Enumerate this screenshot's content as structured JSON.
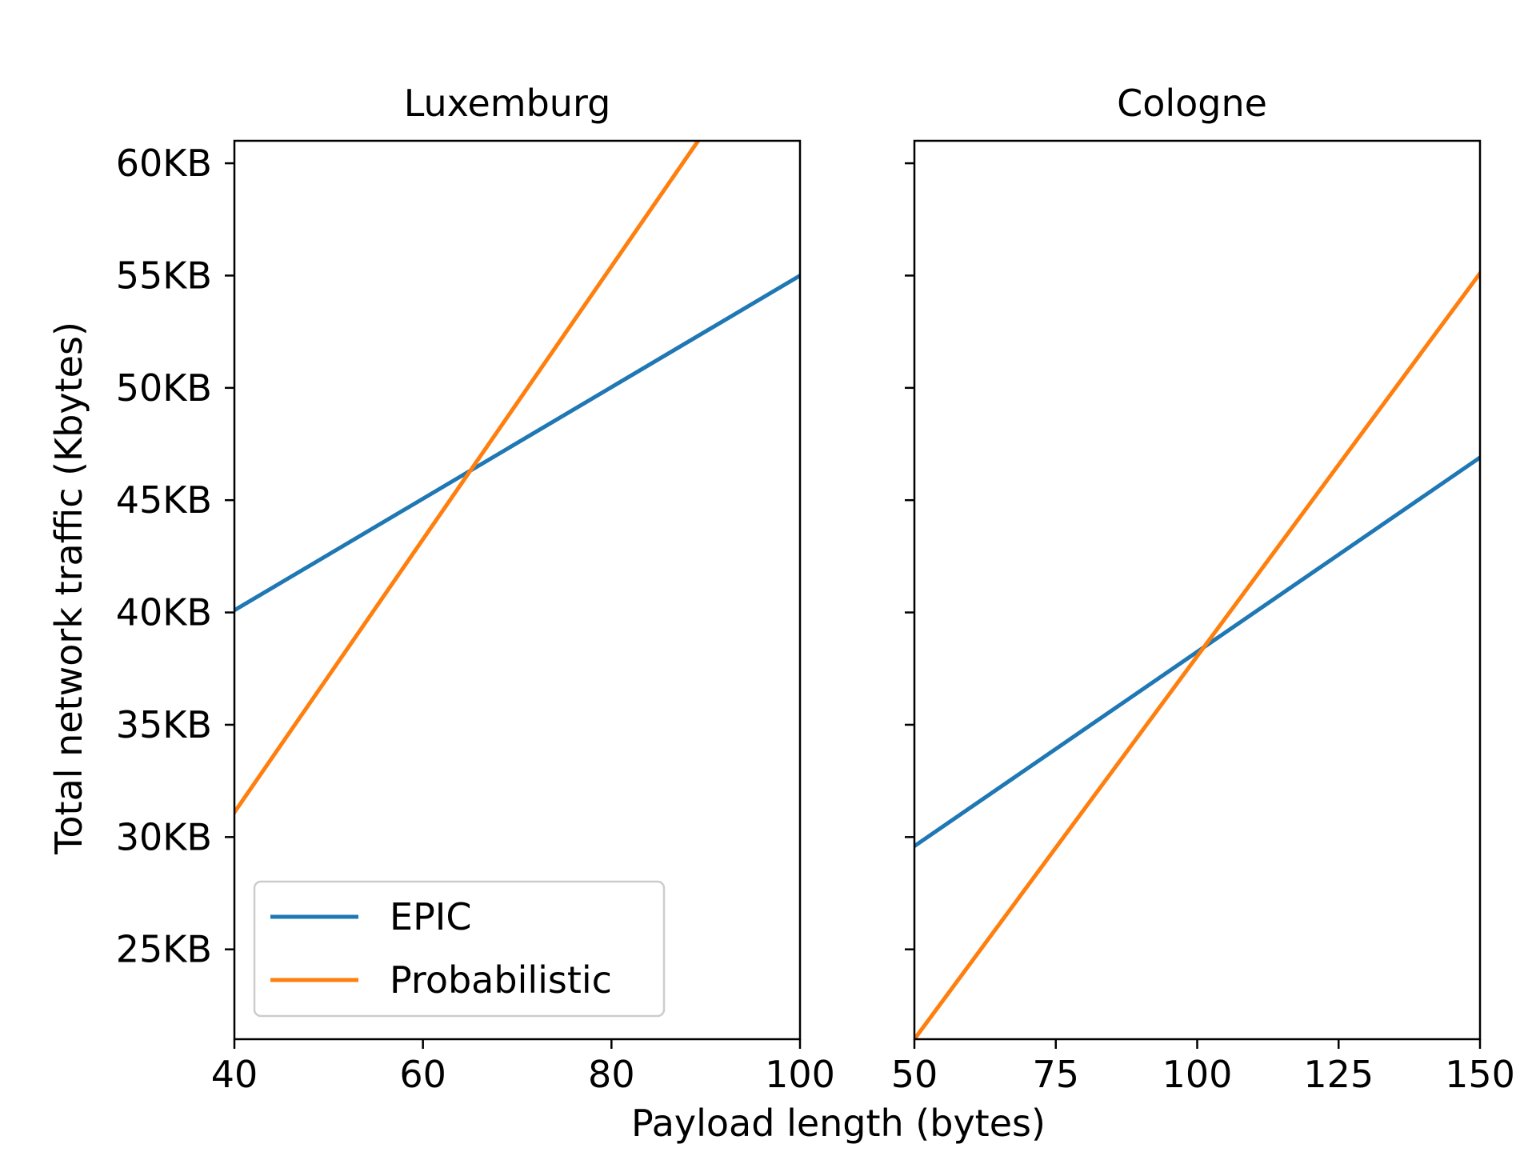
{
  "figure": {
    "ylabel": "Total network traffic (Kbytes)",
    "xlabel": "Payload length (bytes)"
  },
  "chart_data": [
    {
      "type": "line",
      "title": "Luxemburg",
      "xlabel": "Payload length (bytes)",
      "ylabel": "Total network traffic (Kbytes)",
      "xlim": [
        40,
        100
      ],
      "ylim": [
        21,
        61
      ],
      "xticks": [
        40,
        60,
        80,
        100
      ],
      "xtick_labels": [
        "40",
        "60",
        "80",
        "100"
      ],
      "yticks": [
        25,
        30,
        35,
        40,
        45,
        50,
        55,
        60
      ],
      "ytick_labels": [
        "25KB",
        "30KB",
        "35KB",
        "40KB",
        "45KB",
        "50KB",
        "55KB",
        "60KB"
      ],
      "legend": {
        "position": "lower-left",
        "entries": [
          "EPIC",
          "Probabilistic"
        ]
      },
      "grid": false,
      "series": [
        {
          "name": "EPIC",
          "color": "#1f77b4",
          "x": [
            40,
            100
          ],
          "y": [
            40.1,
            55.0
          ]
        },
        {
          "name": "Probabilistic",
          "color": "#ff7f0e",
          "x": [
            40,
            89.2
          ],
          "y": [
            31.1,
            61.0
          ]
        }
      ]
    },
    {
      "type": "line",
      "title": "Cologne",
      "xlabel": "Payload length (bytes)",
      "ylabel": "Total network traffic (Kbytes)",
      "xlim": [
        50,
        150
      ],
      "ylim": [
        21,
        61
      ],
      "xticks": [
        50,
        75,
        100,
        125,
        150
      ],
      "xtick_labels": [
        "50",
        "75",
        "100",
        "125",
        "150"
      ],
      "yticks": [
        25,
        30,
        35,
        40,
        45,
        50,
        55,
        60
      ],
      "ytick_labels": [],
      "grid": false,
      "series": [
        {
          "name": "EPIC",
          "color": "#1f77b4",
          "x": [
            50,
            150
          ],
          "y": [
            29.6,
            46.9
          ]
        },
        {
          "name": "Probabilistic",
          "color": "#ff7f0e",
          "x": [
            50,
            150
          ],
          "y": [
            21.0,
            55.1
          ]
        }
      ]
    }
  ]
}
